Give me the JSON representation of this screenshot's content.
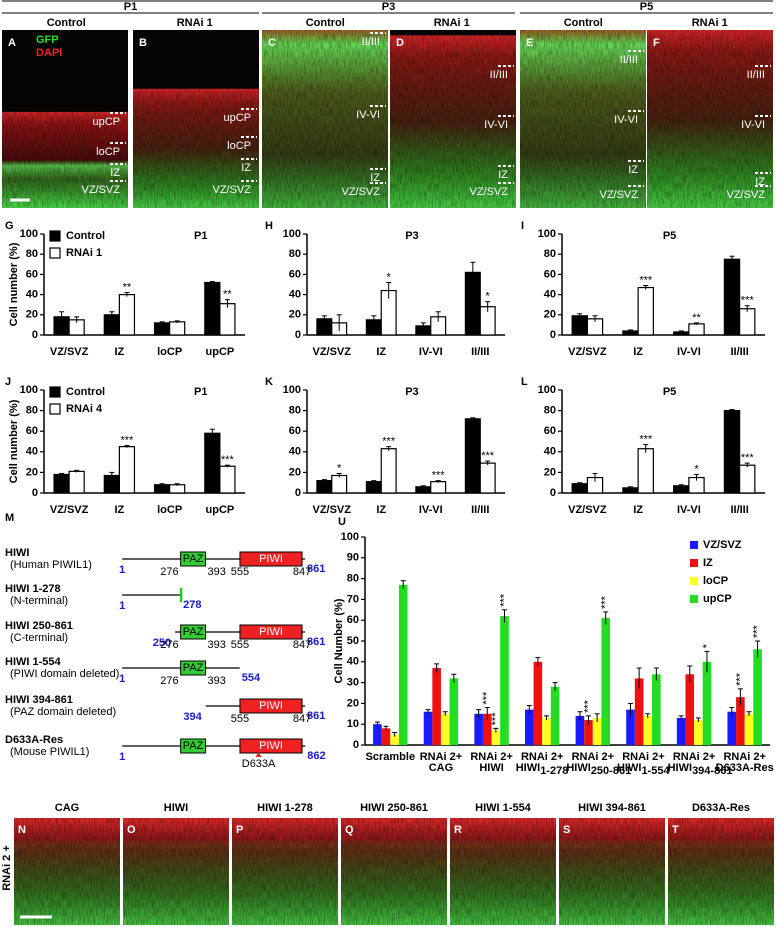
{
  "header": {
    "groups": [
      {
        "label": "P1",
        "columns": [
          "Control",
          "RNAi 1"
        ]
      },
      {
        "label": "P3",
        "columns": [
          "Control",
          "RNAi 1"
        ]
      },
      {
        "label": "P5",
        "columns": [
          "Control",
          "RNAi 1"
        ]
      }
    ]
  },
  "top_panels": [
    {
      "letter": "A",
      "stains": [
        {
          "text": "GFP",
          "color": "#22dd22"
        },
        {
          "text": "DAPI",
          "color": "#ee2222"
        }
      ],
      "layers": [
        "upCP",
        "loCP",
        "IZ",
        "VZ/SVZ"
      ]
    },
    {
      "letter": "B",
      "layers": [
        "upCP",
        "loCP",
        "IZ",
        "VZ/SVZ"
      ]
    },
    {
      "letter": "C",
      "layers": [
        "II/III",
        "IV-VI",
        "IZ",
        "VZ/SVZ"
      ]
    },
    {
      "letter": "D",
      "layers": [
        "II/III",
        "IV-VI",
        "IZ",
        "VZ/SVZ"
      ]
    },
    {
      "letter": "E",
      "layers": [
        "II/III",
        "IV-VI",
        "IZ",
        "VZ/SVZ"
      ]
    },
    {
      "letter": "F",
      "layers": [
        "II/III",
        "IV-VI",
        "IZ",
        "VZ/SVZ"
      ]
    }
  ],
  "chart_data": [
    {
      "type": "bar",
      "panel": "G",
      "title": "P1",
      "y_label": "Cell number (%)",
      "legend": true,
      "categories": [
        "VZ/SVZ",
        "IZ",
        "loCP",
        "upCP"
      ],
      "ylim": [
        0,
        100
      ],
      "yticks": [
        0,
        20,
        40,
        60,
        80,
        100
      ],
      "series": [
        {
          "name": "Control",
          "color": "#000000",
          "values": [
            18,
            20,
            12,
            52
          ],
          "errors": [
            5,
            3,
            1,
            1
          ]
        },
        {
          "name": "RNAi 1",
          "color": "#ffffff",
          "values": [
            15,
            40,
            13,
            31
          ],
          "errors": [
            3,
            2,
            1,
            4
          ],
          "significance": [
            null,
            "**",
            null,
            "**"
          ]
        }
      ]
    },
    {
      "type": "bar",
      "panel": "H",
      "title": "P3",
      "categories": [
        "VZ/SVZ",
        "IZ",
        "IV-VI",
        "II/III"
      ],
      "ylim": [
        0,
        100
      ],
      "yticks": [
        0,
        20,
        40,
        60,
        80,
        100
      ],
      "series": [
        {
          "color": "#000000",
          "values": [
            16,
            15,
            9,
            62
          ],
          "errors": [
            3,
            4,
            3,
            10
          ]
        },
        {
          "color": "#ffffff",
          "values": [
            12,
            44,
            18,
            28
          ],
          "errors": [
            8,
            8,
            5,
            5
          ],
          "significance": [
            null,
            "*",
            null,
            "*"
          ]
        }
      ]
    },
    {
      "type": "bar",
      "panel": "I",
      "title": "P5",
      "categories": [
        "VZ/SVZ",
        "IZ",
        "IV-VI",
        "II/III"
      ],
      "ylim": [
        0,
        100
      ],
      "yticks": [
        0,
        20,
        40,
        60,
        80,
        100
      ],
      "series": [
        {
          "color": "#000000",
          "values": [
            19,
            4,
            3,
            75
          ],
          "errors": [
            2,
            1,
            1,
            3
          ]
        },
        {
          "color": "#ffffff",
          "values": [
            16,
            47,
            11,
            26
          ],
          "errors": [
            3,
            2,
            1,
            3
          ],
          "significance": [
            null,
            "***",
            "**",
            "***"
          ]
        }
      ]
    },
    {
      "type": "bar",
      "panel": "J",
      "title": "P1",
      "y_label": "Cell number (%)",
      "legend": true,
      "categories": [
        "VZ/SVZ",
        "IZ",
        "loCP",
        "upCP"
      ],
      "ylim": [
        0,
        100
      ],
      "yticks": [
        0,
        20,
        40,
        60,
        80,
        100
      ],
      "series": [
        {
          "name": "Control",
          "color": "#000000",
          "values": [
            18,
            17,
            8,
            58
          ],
          "errors": [
            1,
            3,
            1,
            4
          ]
        },
        {
          "name": "RNAi 4",
          "color": "#ffffff",
          "values": [
            21,
            45,
            8,
            26
          ],
          "errors": [
            1,
            1,
            1,
            1
          ],
          "significance": [
            null,
            "***",
            null,
            "***"
          ]
        }
      ]
    },
    {
      "type": "bar",
      "panel": "K",
      "title": "P3",
      "categories": [
        "VZ/SVZ",
        "IZ",
        "IV-VI",
        "II/III"
      ],
      "ylim": [
        0,
        100
      ],
      "yticks": [
        0,
        20,
        40,
        60,
        80,
        100
      ],
      "series": [
        {
          "color": "#000000",
          "values": [
            12,
            11,
            6,
            72
          ],
          "errors": [
            1,
            1,
            1,
            1
          ]
        },
        {
          "color": "#ffffff",
          "values": [
            17,
            43,
            11,
            29
          ],
          "errors": [
            2,
            2,
            1,
            2
          ],
          "significance": [
            "*",
            "***",
            "***",
            "***"
          ]
        }
      ]
    },
    {
      "type": "bar",
      "panel": "L",
      "title": "P5",
      "categories": [
        "VZ/SVZ",
        "IZ",
        "IV-VI",
        "II/III"
      ],
      "ylim": [
        0,
        100
      ],
      "yticks": [
        0,
        20,
        40,
        60,
        80,
        100
      ],
      "series": [
        {
          "color": "#000000",
          "values": [
            9,
            5,
            7,
            80
          ],
          "errors": [
            1,
            1,
            1,
            1
          ]
        },
        {
          "color": "#ffffff",
          "values": [
            15,
            43,
            15,
            27
          ],
          "errors": [
            4,
            4,
            3,
            2
          ],
          "significance": [
            null,
            "***",
            "*",
            "***"
          ]
        }
      ]
    },
    {
      "type": "bar",
      "panel": "U",
      "y_label": "Cell Number (%)",
      "legend": true,
      "annotation_orientation": "vertical",
      "categories": [
        [
          "Scramble"
        ],
        [
          "RNAi 2+",
          "CAG"
        ],
        [
          "RNAi 2+",
          "HIWI"
        ],
        [
          "RNAi 2+",
          "HIWI",
          "1-278"
        ],
        [
          "RNAi 2+",
          "HIWI",
          "250-861"
        ],
        [
          "RNAi 2+",
          "HIWI",
          "1-554"
        ],
        [
          "RNAi 2+",
          "HIWI",
          "394-861"
        ],
        [
          "RNAi 2+",
          "D633A-Res"
        ]
      ],
      "ylim": [
        0,
        100
      ],
      "yticks": [
        0,
        10,
        20,
        30,
        40,
        50,
        60,
        70,
        80,
        90,
        100
      ],
      "series": [
        {
          "name": "VZ/SVZ",
          "color": "#1a1aff",
          "values": [
            10,
            16,
            15,
            17,
            14,
            17,
            13,
            16
          ],
          "errors": [
            1,
            1,
            2,
            2,
            2,
            3,
            1,
            2
          ]
        },
        {
          "name": "IZ",
          "color": "#ee1111",
          "values": [
            8,
            37,
            15,
            40,
            12,
            32,
            34,
            23
          ],
          "errors": [
            1,
            2,
            3,
            2,
            2,
            5,
            4,
            4
          ],
          "significance": [
            null,
            null,
            "***",
            null,
            "***",
            null,
            null,
            "***"
          ]
        },
        {
          "name": "loCP",
          "color": "#ffff22",
          "values": [
            5,
            15,
            7,
            13,
            13,
            14,
            12,
            15
          ],
          "errors": [
            1,
            1,
            1,
            1,
            2,
            1,
            1,
            1
          ],
          "significance": [
            null,
            null,
            "***",
            null,
            null,
            null,
            null,
            null
          ]
        },
        {
          "name": "upCP",
          "color": "#22dd22",
          "values": [
            77,
            32,
            62,
            28,
            61,
            34,
            40,
            46
          ],
          "errors": [
            2,
            2,
            3,
            2,
            3,
            3,
            5,
            4
          ],
          "significance": [
            null,
            null,
            "***",
            null,
            "***",
            null,
            "*",
            "***"
          ]
        }
      ]
    }
  ],
  "domain_diagram": {
    "letter": "M",
    "paz_label": "PAZ",
    "piwi_label": "PIWI",
    "rows": [
      {
        "name": "HIWI",
        "description": "(Human PIWIL1)",
        "start": 1,
        "end": 861,
        "paz": [
          276,
          393
        ],
        "piwi": [
          555,
          847
        ],
        "show_domain_positions": true
      },
      {
        "name": "HIWI 1-278",
        "description": "(N-terminal)",
        "start": 1,
        "end": 278,
        "paz_fragment": true
      },
      {
        "name": "HIWI 250-861",
        "description": "(C-terminal)",
        "start": 250,
        "end": 861,
        "paz": [
          276,
          393
        ],
        "piwi": [
          555,
          847
        ],
        "show_domain_positions": true
      },
      {
        "name": "HIWI 1-554",
        "description": "(PIWI domain deleted)",
        "start": 1,
        "end": 554,
        "paz": [
          276,
          393
        ],
        "show_domain_positions": true
      },
      {
        "name": "HIWI 394-861",
        "description": "(PAZ domain deleted)",
        "start": 394,
        "end": 861,
        "piwi": [
          555,
          847
        ],
        "show_domain_positions": true
      },
      {
        "name": "D633A-Res",
        "description": "(Mouse PIWIL1)",
        "start": 1,
        "end": 862,
        "paz": [
          276,
          393
        ],
        "piwi": [
          555,
          847
        ],
        "show_domain_positions": false,
        "mutation": "D633A"
      }
    ]
  },
  "bottom_panels": {
    "row_label": "RNAi 2 +",
    "panels": [
      {
        "letter": "N",
        "label": "CAG"
      },
      {
        "letter": "O",
        "label": "HIWI"
      },
      {
        "letter": "P",
        "label": "HIWI 1-278"
      },
      {
        "letter": "Q",
        "label": "HIWI 250-861"
      },
      {
        "letter": "R",
        "label": "HIWI 1-554"
      },
      {
        "letter": "S",
        "label": "HIWI 394-861"
      },
      {
        "letter": "T",
        "label": "D633A-Res"
      }
    ]
  }
}
